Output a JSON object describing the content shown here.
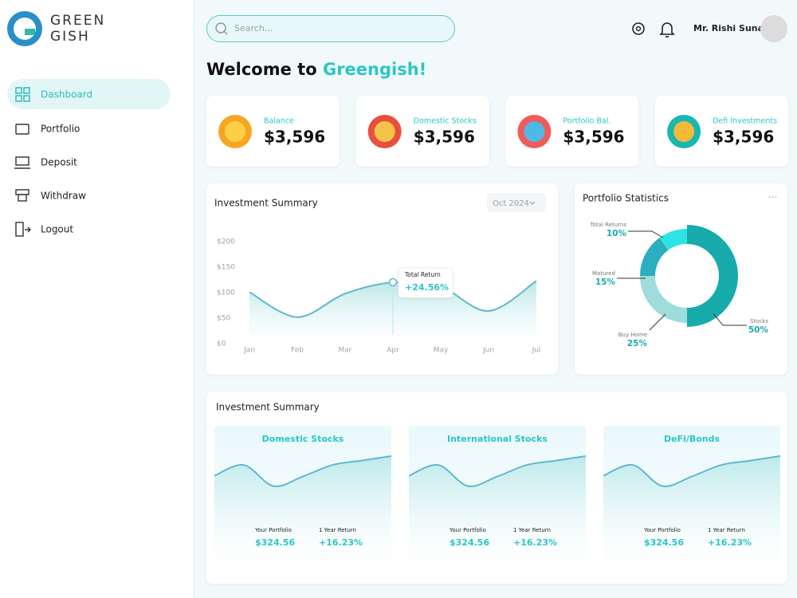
{
  "sidebar": {
    "logo": [
      "GREEN",
      "GISH"
    ],
    "nav": [
      "Dashboard",
      "Portfolio",
      "Deposit",
      "Withdraw",
      "Logout"
    ]
  },
  "header": {
    "search_placeholder": "Search...",
    "user": "Mr. Rishi Sunak"
  },
  "welcome": {
    "text": "Welcome to",
    "brand": "Greengish!"
  },
  "cards": [
    {
      "label": "Balance",
      "value": "$3,596"
    },
    {
      "label": "Domestic Stocks",
      "value": "$3,596"
    },
    {
      "label": "Portfolio Bal.",
      "value": "$3,596"
    },
    {
      "label": "Defi Investments",
      "value": "$3,596"
    }
  ],
  "chart_data": [
    {
      "type": "line",
      "title": "Investment Summary",
      "filter": "Oct 2024",
      "categories": [
        "Jan",
        "Feb",
        "Mar",
        "Apr",
        "May",
        "Jun",
        "Jul"
      ],
      "values": [
        101,
        52,
        98,
        120,
        111,
        64,
        123
      ],
      "color": "#5fb8cf",
      "ylim": [
        0,
        200
      ],
      "yticks": [
        {
          "value": 0,
          "label": "$0"
        },
        {
          "value": 50,
          "label": "$50"
        },
        {
          "value": 100,
          "label": "$100"
        },
        {
          "value": 150,
          "label": "$150"
        },
        {
          "value": 200,
          "label": "$200"
        }
      ],
      "tooltip": {
        "label": "Total Return",
        "value": "+24.56%"
      }
    },
    {
      "type": "pie",
      "title": "Portfolio Statistics",
      "categories": [
        "Stocks",
        "Buy Home",
        "Matured",
        "Total Returns"
      ],
      "values": [
        50,
        25,
        15,
        10
      ],
      "value_labels": [
        "50%",
        "25%",
        "15%",
        "10%"
      ],
      "colors": [
        "#17abab",
        "#9fdcdc",
        "#2aaec0",
        "#2ee3e3"
      ]
    }
  ],
  "investments": {
    "title": "Investment Summary",
    "items": [
      {
        "title": "Domestic Stocks",
        "values": [
          54,
          71,
          38,
          53,
          71,
          78,
          85
        ],
        "ylim": [
          0,
          100
        ],
        "portfolio_label": "Your Portfolio",
        "portfolio_value": "$324.56",
        "return_label": "1 Year Return",
        "return_value": "+16.23%"
      },
      {
        "title": "International Stocks",
        "values": [
          54,
          71,
          38,
          53,
          71,
          78,
          85
        ],
        "ylim": [
          0,
          100
        ],
        "portfolio_label": "Your Portfolio",
        "portfolio_value": "$324.56",
        "return_label": "1 Year Return",
        "return_value": "+16.23%"
      },
      {
        "title": "DeFi/Bonds",
        "values": [
          54,
          71,
          38,
          53,
          71,
          78,
          85
        ],
        "ylim": [
          0,
          100
        ],
        "portfolio_label": "Your Portfolio",
        "portfolio_value": "$324.56",
        "return_label": "1 Year Return",
        "return_value": "+16.23%"
      }
    ]
  }
}
